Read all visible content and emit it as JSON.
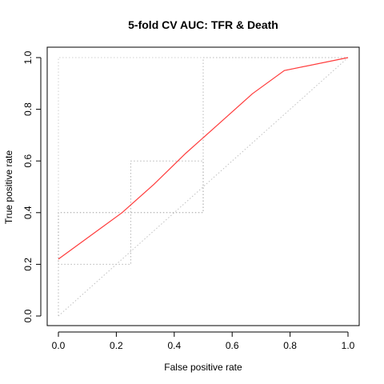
{
  "chart_data": {
    "type": "line",
    "title": "5-fold CV AUC: TFR & Death",
    "xlabel": "False positive rate",
    "ylabel": "True positive rate",
    "xlim": [
      0,
      1
    ],
    "ylim": [
      0,
      1
    ],
    "x_ticks": [
      0.0,
      0.2,
      0.4,
      0.6,
      0.8,
      1.0
    ],
    "y_ticks": [
      0.0,
      0.2,
      0.4,
      0.6,
      0.8,
      1.0
    ],
    "x_tick_labels": [
      "0.0",
      "0.2",
      "0.4",
      "0.6",
      "0.8",
      "1.0"
    ],
    "y_tick_labels": [
      "0.0",
      "0.2",
      "0.4",
      "0.6",
      "0.8",
      "1.0"
    ],
    "grid": false,
    "legend": "none",
    "series": [
      {
        "color": "#ff3b3b",
        "line_style": "solid",
        "x": [
          0.0,
          0.22,
          0.33,
          0.44,
          0.56,
          0.67,
          0.78,
          1.0
        ],
        "y": [
          0.22,
          0.4,
          0.51,
          0.63,
          0.75,
          0.86,
          0.95,
          1.0
        ]
      },
      {
        "color": "#b8b8b8",
        "line_style": "dotted",
        "x": [
          0.0,
          0.0,
          0.25,
          0.25,
          0.5,
          0.5,
          1.0
        ],
        "y": [
          0.0,
          0.2,
          0.2,
          0.6,
          0.6,
          1.0,
          1.0
        ]
      },
      {
        "color": "#a0a0a0",
        "line_style": "dotted",
        "x": [
          0.0,
          0.0,
          0.5,
          0.5,
          1.0
        ],
        "y": [
          0.0,
          0.4,
          0.4,
          1.0,
          1.0
        ]
      },
      {
        "color": "#d0d0d0",
        "line_style": "dotted",
        "x": [
          0.0,
          0.0,
          1.0
        ],
        "y": [
          0.0,
          1.0,
          1.0
        ]
      },
      {
        "color": "#c0c0c0",
        "line_style": "dotted",
        "x": [
          0.0,
          1.0
        ],
        "y": [
          0.0,
          1.0
        ]
      }
    ]
  }
}
